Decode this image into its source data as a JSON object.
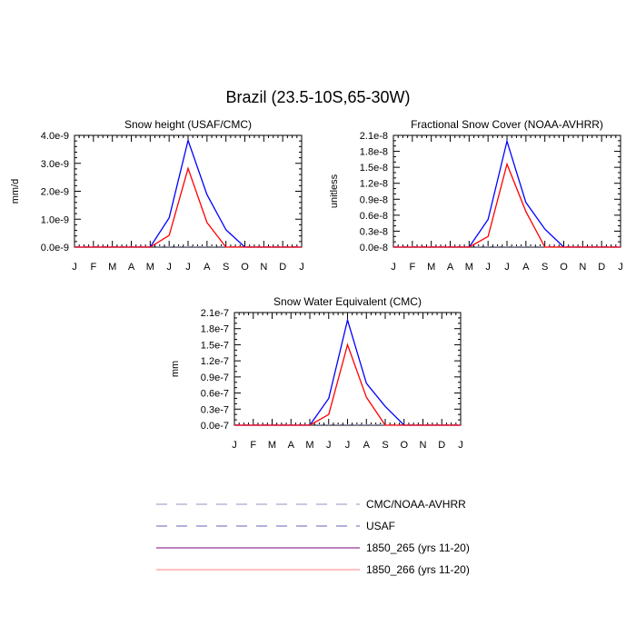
{
  "title": "Brazil (23.5-10S,65-30W)",
  "colors": {
    "series1": "#0000ff",
    "series2": "#ff0000",
    "obs": "#9090c0",
    "axis": "#000000"
  },
  "chart_data": [
    {
      "type": "line",
      "title": "Snow height (USAF/CMC)",
      "ylabel": "mm/d",
      "categories": [
        "J",
        "F",
        "M",
        "A",
        "M",
        "J",
        "J",
        "A",
        "S",
        "O",
        "N",
        "D",
        "J"
      ],
      "yticks": [
        "0.0e-9",
        "1.0e-9",
        "2.0e-9",
        "3.0e-9",
        "4.0e-9"
      ],
      "ylim": [
        0,
        4e-09
      ],
      "series": [
        {
          "name": "1850_265 (yrs 11-20)",
          "color": "#0000ff",
          "values": [
            0,
            0,
            0,
            0,
            0,
            1.05e-09,
            3.82e-09,
            1.88e-09,
            6.2e-10,
            0,
            0,
            0,
            0
          ]
        },
        {
          "name": "1850_266 (yrs 11-20)",
          "color": "#ff0000",
          "values": [
            0,
            0,
            0,
            0,
            0,
            4.2e-10,
            2.82e-09,
            8.8e-10,
            0,
            0,
            0,
            0,
            0
          ]
        }
      ]
    },
    {
      "type": "line",
      "title": "Fractional Snow Cover (NOAA-AVHRR)",
      "ylabel": "unitless",
      "categories": [
        "J",
        "F",
        "M",
        "A",
        "M",
        "J",
        "J",
        "A",
        "S",
        "O",
        "N",
        "D",
        "J"
      ],
      "yticks": [
        "0.0e-8",
        "0.3e-8",
        "0.6e-8",
        "0.9e-8",
        "1.2e-8",
        "1.5e-8",
        "1.8e-8",
        "2.1e-8"
      ],
      "ylim": [
        0,
        2.1e-08
      ],
      "series": [
        {
          "name": "1850_265 (yrs 11-20)",
          "color": "#0000ff",
          "values": [
            0,
            0,
            0,
            0,
            0,
            5.2e-09,
            1.99e-08,
            8.4e-09,
            3.4e-09,
            0,
            0,
            0,
            0
          ]
        },
        {
          "name": "1850_266 (yrs 11-20)",
          "color": "#ff0000",
          "values": [
            0,
            0,
            0,
            0,
            0,
            2e-09,
            1.56e-08,
            6.7e-09,
            0,
            0,
            0,
            0,
            0
          ]
        }
      ]
    },
    {
      "type": "line",
      "title": "Snow Water Equivalent (CMC)",
      "ylabel": "mm",
      "categories": [
        "J",
        "F",
        "M",
        "A",
        "M",
        "J",
        "J",
        "A",
        "S",
        "O",
        "N",
        "D",
        "J"
      ],
      "yticks": [
        "0.0e-7",
        "0.3e-7",
        "0.6e-7",
        "0.9e-7",
        "1.2e-7",
        "1.5e-7",
        "1.8e-7",
        "2.1e-7"
      ],
      "ylim": [
        0,
        2.1e-07
      ],
      "series": [
        {
          "name": "1850_265 (yrs 11-20)",
          "color": "#0000ff",
          "values": [
            0,
            0,
            0,
            0,
            0,
            5e-08,
            1.96e-07,
            7.8e-08,
            3.5e-08,
            0,
            0,
            0,
            0
          ]
        },
        {
          "name": "1850_266 (yrs 11-20)",
          "color": "#ff0000",
          "values": [
            0,
            0,
            0,
            0,
            0,
            2e-08,
            1.5e-07,
            5.2e-08,
            0,
            0,
            0,
            0,
            0
          ]
        }
      ]
    }
  ],
  "legend": [
    {
      "label": "CMC/NOAA-AVHRR",
      "style": "dashed",
      "color": "#9090c0"
    },
    {
      "label": "USAF",
      "style": "dashed",
      "color": "#6060b0"
    },
    {
      "label": "1850_265 (yrs 11-20)",
      "style": "solid",
      "color": "#800080"
    },
    {
      "label": "1850_266 (yrs 11-20)",
      "style": "solid",
      "color": "#ff8080"
    }
  ]
}
